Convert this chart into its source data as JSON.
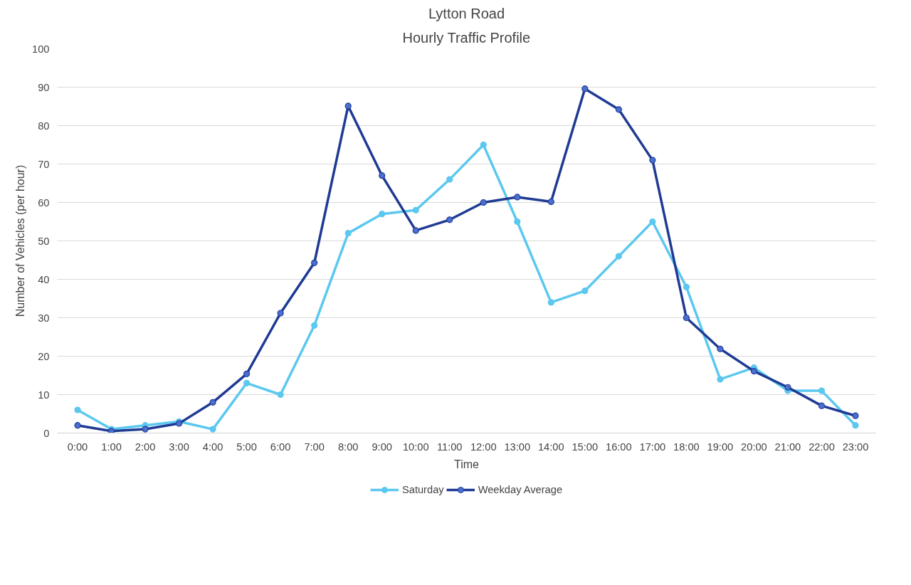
{
  "chart_data": {
    "type": "line",
    "title": "Lytton Road",
    "subtitle": "Hourly Traffic Profile",
    "xlabel": "Time",
    "ylabel": "Number of Vehicles (per hour)",
    "categories": [
      "0:00",
      "1:00",
      "2:00",
      "3:00",
      "4:00",
      "5:00",
      "6:00",
      "7:00",
      "8:00",
      "9:00",
      "10:00",
      "11:00",
      "12:00",
      "13:00",
      "14:00",
      "15:00",
      "16:00",
      "17:00",
      "18:00",
      "19:00",
      "20:00",
      "21:00",
      "22:00",
      "23:00"
    ],
    "series": [
      {
        "name": "Saturday",
        "color": "#5bc8ef",
        "values": [
          6,
          1,
          2,
          3,
          1,
          13,
          10,
          28,
          52,
          57,
          58,
          66,
          75,
          55,
          34,
          37,
          46,
          55,
          38,
          14,
          17,
          11,
          11,
          2
        ]
      },
      {
        "name": "Weekday Average",
        "color": "#1f3a93",
        "values": [
          2,
          0.5,
          1,
          2.5,
          8,
          15.4,
          31.2,
          44.3,
          85.1,
          67,
          52.7,
          55.5,
          60,
          61.4,
          60.2,
          89.6,
          84.2,
          71,
          30,
          21.9,
          16.1,
          11.9,
          7.1,
          4.5
        ]
      }
    ],
    "ylim": [
      0,
      100
    ],
    "yticks": [
      0,
      10,
      20,
      30,
      40,
      50,
      60,
      70,
      80,
      90,
      100
    ],
    "grid": "y",
    "legend": "bottom",
    "marker": "circle",
    "line_style": "solid"
  }
}
